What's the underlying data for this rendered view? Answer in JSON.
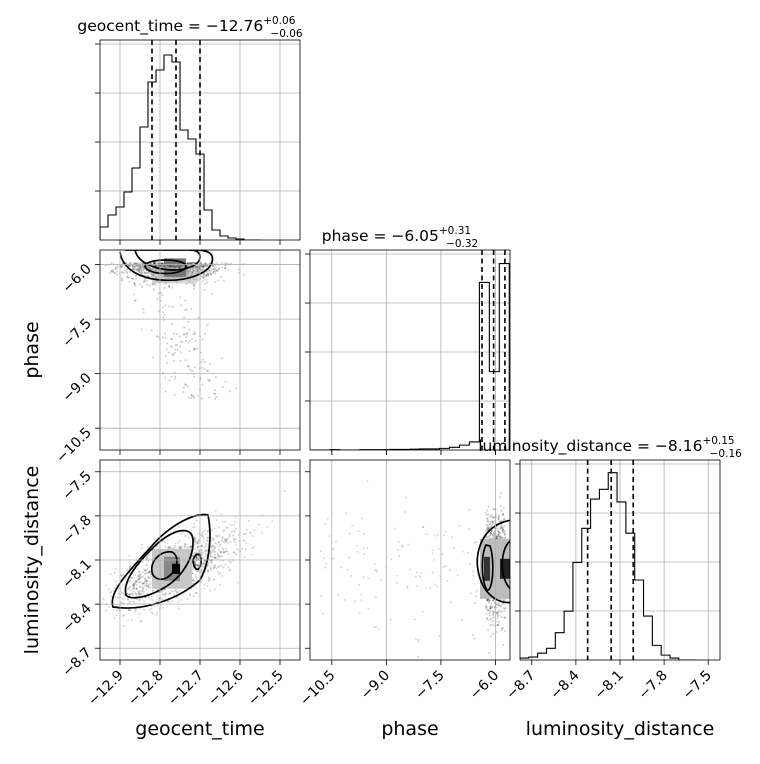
{
  "chart_data": {
    "type": "corner",
    "parameters": [
      "geocent_time",
      "phase",
      "luminosity_distance"
    ],
    "grid": true,
    "marginals": [
      {
        "parameter": "geocent_time",
        "title_name": "geocent_time",
        "median": "−12.76",
        "plus": "+0.06",
        "minus": "−0.06",
        "quantiles": [
          -12.82,
          -12.76,
          -12.7
        ],
        "xlim": [
          -12.95,
          -12.45
        ],
        "ticks": [
          -12.9,
          -12.8,
          -12.7,
          -12.6,
          -12.5
        ],
        "tick_labels": [
          "−12.9",
          "−12.8",
          "−12.7",
          "−12.6",
          "−12.5"
        ],
        "bin_edges": [
          -12.95,
          -12.93,
          -12.91,
          -12.89,
          -12.87,
          -12.85,
          -12.83,
          -12.81,
          -12.79,
          -12.77,
          -12.75,
          -12.73,
          -12.71,
          -12.69,
          -12.67,
          -12.65,
          -12.63,
          -12.61,
          -12.59,
          -12.57,
          -12.55
        ],
        "counts": [
          13,
          25,
          33,
          48,
          72,
          113,
          158,
          170,
          185,
          178,
          110,
          101,
          86,
          30,
          10,
          4,
          2,
          1,
          0,
          0
        ],
        "count_max": 200
      },
      {
        "parameter": "phase",
        "title_name": "phase",
        "median": "−6.05",
        "plus": "+0.31",
        "minus": "−0.32",
        "quantiles": [
          -6.37,
          -6.05,
          -5.74
        ],
        "xlim": [
          -11.1,
          -5.6
        ],
        "ticks": [
          -10.5,
          -9.0,
          -7.5,
          -6.0
        ],
        "tick_labels": [
          "−10.5",
          "−9.0",
          "−7.5",
          "−6.0"
        ],
        "bin_edges": [
          -11.1,
          -10.826,
          -10.552,
          -10.278,
          -10.004,
          -9.73,
          -9.456,
          -9.182,
          -8.908,
          -8.634,
          -8.36,
          -8.086,
          -7.812,
          -7.538,
          -7.264,
          -6.99,
          -6.716,
          -6.442,
          -6.168,
          -5.894,
          -5.62
        ],
        "counts": [
          0,
          0,
          1,
          0,
          0,
          1,
          1,
          1,
          2,
          2,
          3,
          4,
          4,
          6,
          10,
          18,
          30,
          620,
          290,
          690
        ],
        "count_max": 740
      },
      {
        "parameter": "luminosity_distance",
        "title_name": "luminosity_distance",
        "median": "−8.16",
        "plus": "+0.15",
        "minus": "−0.16",
        "quantiles": [
          -8.32,
          -8.16,
          -8.01
        ],
        "xlim": [
          -8.78,
          -7.42
        ],
        "ticks": [
          -8.7,
          -8.4,
          -8.1,
          -7.8,
          -7.5
        ],
        "tick_labels": [
          "−8.7",
          "−8.4",
          "−8.1",
          "−7.8",
          "−7.5"
        ],
        "bin_edges": [
          -8.78,
          -8.72,
          -8.66,
          -8.6,
          -8.54,
          -8.48,
          -8.42,
          -8.36,
          -8.3,
          -8.24,
          -8.18,
          -8.12,
          -8.06,
          -8.0,
          -7.94,
          -7.88,
          -7.82,
          -7.76,
          -7.7,
          -7.64,
          -7.58
        ],
        "counts": [
          2,
          3,
          7,
          12,
          28,
          50,
          100,
          135,
          165,
          175,
          192,
          162,
          130,
          82,
          45,
          15,
          5,
          2,
          0,
          0
        ],
        "count_max": 205
      }
    ],
    "joint": [
      {
        "x": "geocent_time",
        "y": "phase",
        "yticks": [
          -6.0,
          -7.5,
          -9.0,
          -10.5
        ],
        "ytick_labels": [
          "−6.0",
          "−7.5",
          "−9.0",
          "−10.5"
        ],
        "ylim": [
          -11.1,
          -5.6
        ]
      },
      {
        "x": "geocent_time",
        "y": "luminosity_distance",
        "yticks": [
          -7.5,
          -7.8,
          -8.1,
          -8.4,
          -8.7
        ],
        "ytick_labels": [
          "−7.5",
          "−7.8",
          "−8.1",
          "−8.4",
          "−8.7"
        ],
        "ylim": [
          -8.78,
          -7.42
        ]
      },
      {
        "x": "phase",
        "y": "luminosity_distance"
      }
    ]
  }
}
